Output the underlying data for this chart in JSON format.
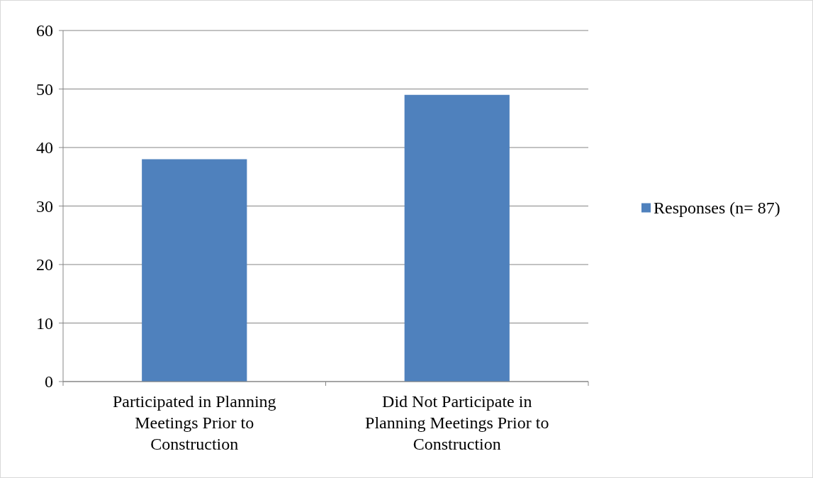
{
  "chart_data": {
    "type": "bar",
    "categories": [
      "Participated in Planning Meetings Prior to Construction",
      "Did Not Participate in Planning Meetings Prior to Construction"
    ],
    "series": [
      {
        "name": "Responses (n= 87)",
        "color": "#4f81bd",
        "values": [
          38,
          49
        ]
      }
    ],
    "ylim": [
      0,
      60
    ],
    "yticks": [
      0,
      10,
      20,
      30,
      40,
      50,
      60
    ],
    "grid": "y",
    "legend": "right"
  }
}
